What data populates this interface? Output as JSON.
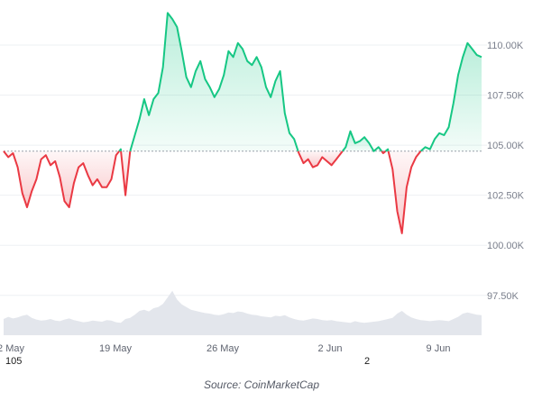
{
  "chart_data": {
    "type": "area",
    "x_ticks": [
      "2 May",
      "19 May",
      "26 May",
      "2 Jun",
      "9 Jun"
    ],
    "y_ticks": [
      {
        "value": 97500,
        "label": "97.50K"
      },
      {
        "value": 100000,
        "label": "100.00K"
      },
      {
        "value": 102500,
        "label": "102.50K"
      },
      {
        "value": 105000,
        "label": "105.00K"
      },
      {
        "value": 107500,
        "label": "107.50K"
      },
      {
        "value": 110000,
        "label": "110.00K"
      }
    ],
    "ylim": [
      95600,
      111800
    ],
    "baseline": 104700,
    "colors": {
      "up_line": "#16c784",
      "up_fill": "#16c784",
      "down_line": "#ea3943",
      "down_fill": "#ea3943",
      "volume": "#e3e6ec",
      "grid": "#eef0f3",
      "baseline": "#9aa0aa"
    },
    "series": [
      {
        "values": [
          104700,
          104400,
          104600,
          103900,
          102600,
          101900,
          102700,
          103300,
          104300,
          104500,
          104000,
          104200,
          103400,
          102200,
          101900,
          103100,
          103900,
          104100,
          103500,
          103000,
          103300,
          102900,
          102900,
          103300,
          104500,
          104800,
          102500,
          104700,
          105500,
          106300,
          107300,
          106500,
          107300,
          107600,
          108900,
          111600,
          111300,
          110900,
          109700,
          108400,
          107900,
          108700,
          109200,
          108300,
          107900,
          107400,
          107800,
          108500,
          109700,
          109400,
          110100,
          109800,
          109200,
          109000,
          109400,
          108900,
          107900,
          107400,
          108200,
          108700,
          106600,
          105600,
          105300,
          104600,
          104100,
          104300,
          103900,
          104000,
          104400,
          104200,
          104000,
          104300,
          104600,
          104900,
          105700,
          105100,
          105200,
          105400,
          105100,
          104700,
          104900,
          104600,
          104800,
          103800,
          101700,
          100600,
          102900,
          103900,
          104400,
          104700,
          104900,
          104800,
          105300,
          105600,
          105500,
          105900,
          107100,
          108500,
          109400,
          110100,
          109800,
          109500,
          109400
        ]
      }
    ],
    "volume": [
      0.3,
      0.34,
      0.31,
      0.33,
      0.36,
      0.38,
      0.32,
      0.29,
      0.27,
      0.28,
      0.3,
      0.27,
      0.26,
      0.29,
      0.31,
      0.28,
      0.26,
      0.24,
      0.25,
      0.27,
      0.26,
      0.25,
      0.28,
      0.27,
      0.24,
      0.23,
      0.3,
      0.32,
      0.38,
      0.45,
      0.47,
      0.44,
      0.5,
      0.52,
      0.58,
      0.7,
      0.82,
      0.66,
      0.57,
      0.52,
      0.47,
      0.45,
      0.43,
      0.41,
      0.4,
      0.38,
      0.37,
      0.39,
      0.42,
      0.41,
      0.44,
      0.43,
      0.4,
      0.38,
      0.37,
      0.35,
      0.34,
      0.33,
      0.36,
      0.35,
      0.37,
      0.33,
      0.3,
      0.28,
      0.27,
      0.29,
      0.31,
      0.3,
      0.28,
      0.27,
      0.28,
      0.26,
      0.25,
      0.24,
      0.23,
      0.26,
      0.24,
      0.23,
      0.24,
      0.25,
      0.26,
      0.28,
      0.3,
      0.32,
      0.4,
      0.45,
      0.38,
      0.33,
      0.3,
      0.28,
      0.27,
      0.26,
      0.27,
      0.28,
      0.27,
      0.26,
      0.3,
      0.34,
      0.4,
      0.42,
      0.4,
      0.38,
      0.37
    ]
  },
  "axis_fragments": {
    "left": "105",
    "right": "2"
  },
  "source": "Source: CoinMarketCap"
}
